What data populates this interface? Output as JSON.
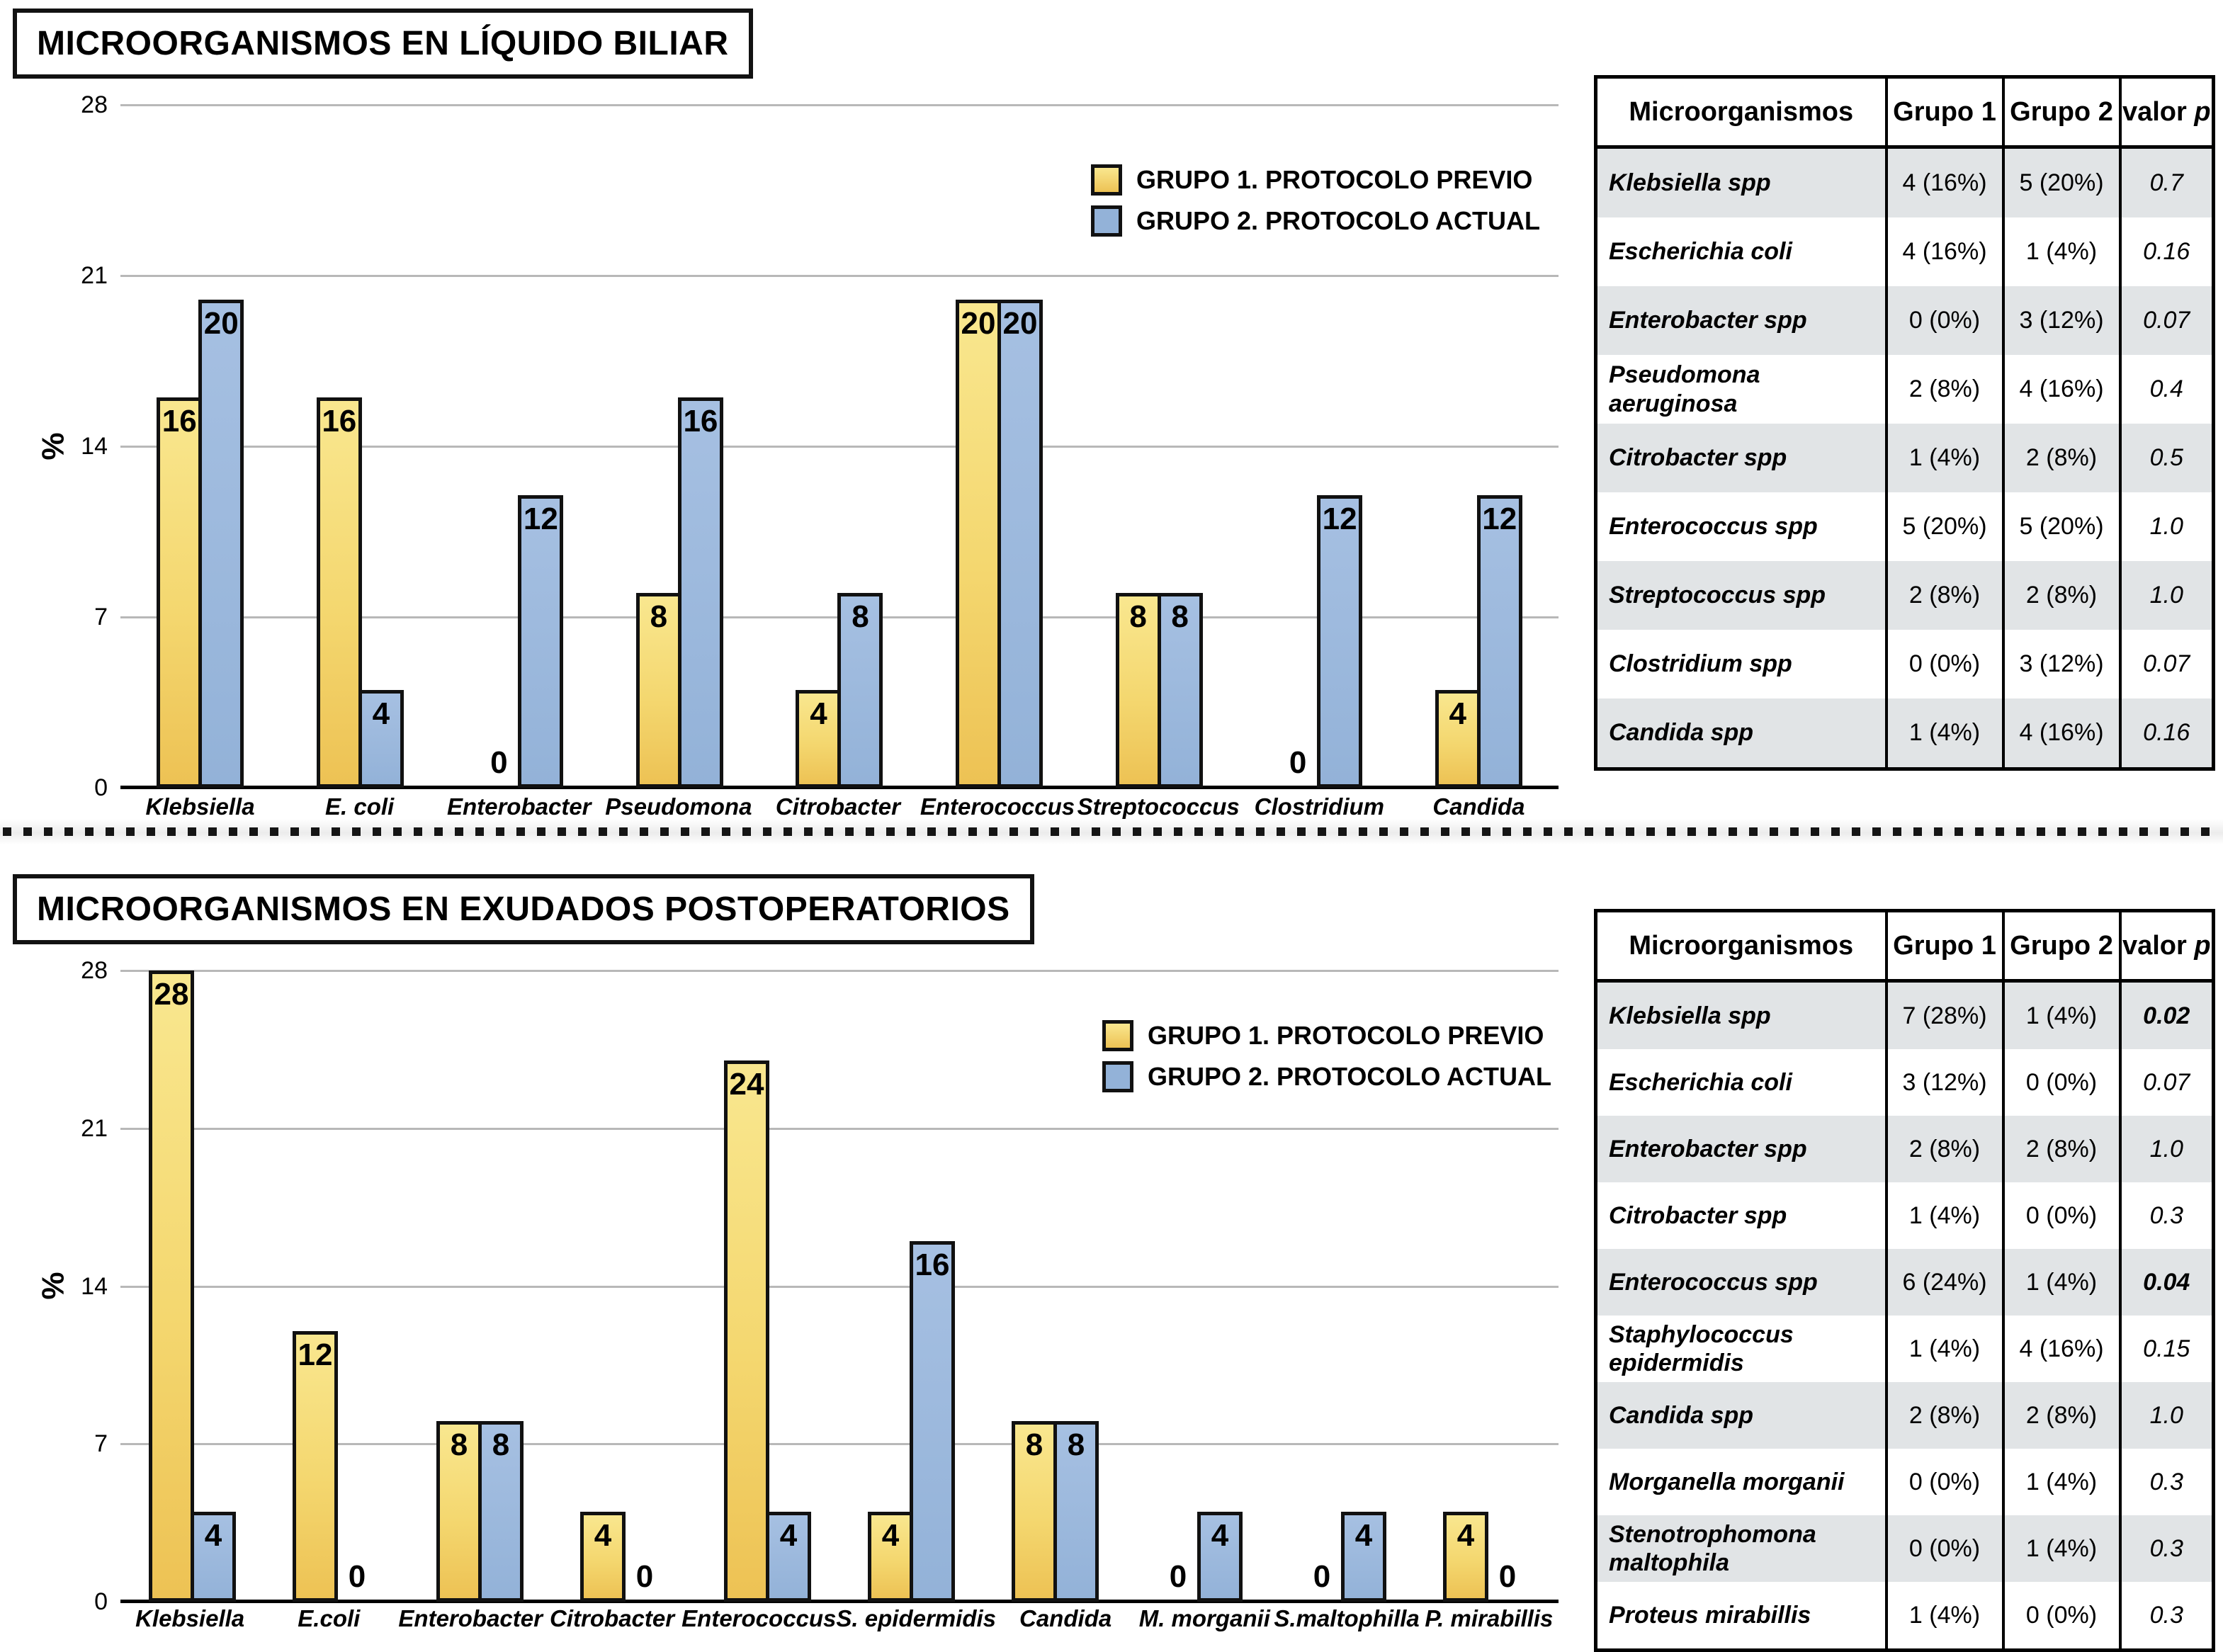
{
  "colors": {
    "yellow_top": "#f9e78f",
    "yellow_mid": "#f4d76f",
    "yellow_bottom": "#edc254",
    "blue_top": "#a6c0e2",
    "blue_bottom": "#93b2d8",
    "bar_border": "#111111",
    "gridline": "#b8b8b8",
    "axis": "#000000",
    "row_shade": "#e1e4e6"
  },
  "chart_data": [
    {
      "type": "bar",
      "title": "MICROORGANISMOS EN LÍQUIDO BILIAR",
      "xlabel": "",
      "ylabel": "%",
      "ylim": [
        0,
        28
      ],
      "yticks": [
        0,
        7,
        14,
        21,
        28
      ],
      "grid": true,
      "legend_position": "top-right",
      "categories": [
        "Klebsiella",
        "E. coli",
        "Enterobacter",
        "Pseudomona",
        "Citrobacter",
        "Enterococcus",
        "Streptococcus",
        "Clostridium",
        "Candida"
      ],
      "series": [
        {
          "name": "GRUPO 1. PROTOCOLO PREVIO",
          "color": "yellow",
          "values": [
            16,
            16,
            0,
            8,
            4,
            20,
            8,
            0,
            4
          ]
        },
        {
          "name": "GRUPO 2. PROTOCOLO ACTUAL",
          "color": "blue",
          "values": [
            20,
            4,
            12,
            16,
            8,
            20,
            8,
            12,
            12
          ]
        }
      ]
    },
    {
      "type": "bar",
      "title": "MICROORGANISMOS EN EXUDADOS POSTOPERATORIOS",
      "xlabel": "",
      "ylabel": "%",
      "ylim": [
        0,
        28
      ],
      "yticks": [
        0,
        7,
        14,
        21,
        28
      ],
      "grid": true,
      "legend_position": "top-right",
      "categories": [
        "Klebsiella",
        "E.coli",
        "Enterobacter",
        "Citrobacter",
        "Enterococcus",
        "S. epidermidis",
        "Candida",
        "M. morganii",
        "S.maltophilla",
        "P. mirabillis"
      ],
      "series": [
        {
          "name": "GRUPO 1. PROTOCOLO PREVIO",
          "color": "yellow",
          "values": [
            28,
            12,
            8,
            4,
            24,
            4,
            8,
            0,
            0,
            4
          ]
        },
        {
          "name": "GRUPO 2. PROTOCOLO ACTUAL",
          "color": "blue",
          "values": [
            4,
            0,
            8,
            0,
            4,
            16,
            8,
            4,
            4,
            0
          ]
        }
      ]
    }
  ],
  "sections": [
    {
      "title": "MICROORGANISMOS EN LÍQUIDO BILIAR",
      "legend": [
        {
          "label": "GRUPO 1. PROTOCOLO PREVIO",
          "swatch": "yellow"
        },
        {
          "label": "GRUPO 2. PROTOCOLO ACTUAL",
          "swatch": "blue"
        }
      ],
      "table": {
        "headers": [
          "Microorganismos",
          "Grupo 1",
          "Grupo 2",
          "valor p"
        ],
        "rows": [
          {
            "name": "Klebsiella spp",
            "grupo1": "4 (16%)",
            "grupo2": "5 (20%)",
            "p": "0.7",
            "p_bold": false
          },
          {
            "name": "Escherichia coli",
            "grupo1": "4 (16%)",
            "grupo2": "1 (4%)",
            "p": "0.16",
            "p_bold": false
          },
          {
            "name": "Enterobacter spp",
            "grupo1": "0 (0%)",
            "grupo2": "3 (12%)",
            "p": "0.07",
            "p_bold": false
          },
          {
            "name": "Pseudomona aeruginosa",
            "grupo1": "2 (8%)",
            "grupo2": "4 (16%)",
            "p": "0.4",
            "p_bold": false
          },
          {
            "name": "Citrobacter spp",
            "grupo1": "1 (4%)",
            "grupo2": "2 (8%)",
            "p": "0.5",
            "p_bold": false
          },
          {
            "name": "Enterococcus spp",
            "grupo1": "5 (20%)",
            "grupo2": "5 (20%)",
            "p": "1.0",
            "p_bold": false
          },
          {
            "name": "Streptococcus spp",
            "grupo1": "2 (8%)",
            "grupo2": "2 (8%)",
            "p": "1.0",
            "p_bold": false
          },
          {
            "name": "Clostridium spp",
            "grupo1": "0 (0%)",
            "grupo2": "3 (12%)",
            "p": "0.07",
            "p_bold": false
          },
          {
            "name": "Candida spp",
            "grupo1": "1 (4%)",
            "grupo2": "4 (16%)",
            "p": "0.16",
            "p_bold": false
          }
        ]
      }
    },
    {
      "title": "MICROORGANISMOS EN EXUDADOS POSTOPERATORIOS",
      "legend": [
        {
          "label": "GRUPO 1. PROTOCOLO PREVIO",
          "swatch": "yellow"
        },
        {
          "label": "GRUPO 2. PROTOCOLO ACTUAL",
          "swatch": "blue"
        }
      ],
      "table": {
        "headers": [
          "Microorganismos",
          "Grupo 1",
          "Grupo 2",
          "valor p"
        ],
        "rows": [
          {
            "name": "Klebsiella spp",
            "grupo1": "7 (28%)",
            "grupo2": "1 (4%)",
            "p": "0.02",
            "p_bold": true
          },
          {
            "name": "Escherichia coli",
            "grupo1": "3 (12%)",
            "grupo2": "0 (0%)",
            "p": "0.07",
            "p_bold": false
          },
          {
            "name": "Enterobacter spp",
            "grupo1": "2 (8%)",
            "grupo2": "2 (8%)",
            "p": "1.0",
            "p_bold": false
          },
          {
            "name": "Citrobacter spp",
            "grupo1": "1 (4%)",
            "grupo2": "0 (0%)",
            "p": "0.3",
            "p_bold": false
          },
          {
            "name": "Enterococcus spp",
            "grupo1": "6 (24%)",
            "grupo2": "1 (4%)",
            "p": "0.04",
            "p_bold": true
          },
          {
            "name": "Staphylococcus epidermidis",
            "grupo1": "1 (4%)",
            "grupo2": "4 (16%)",
            "p": "0.15",
            "p_bold": false
          },
          {
            "name": "Candida spp",
            "grupo1": "2 (8%)",
            "grupo2": "2 (8%)",
            "p": "1.0",
            "p_bold": false
          },
          {
            "name": "Morganella morganii",
            "grupo1": "0 (0%)",
            "grupo2": "1 (4%)",
            "p": "0.3",
            "p_bold": false
          },
          {
            "name": "Stenotrophomona maltophila",
            "grupo1": "0 (0%)",
            "grupo2": "1 (4%)",
            "p": "0.3",
            "p_bold": false
          },
          {
            "name": "Proteus mirabillis",
            "grupo1": "1 (4%)",
            "grupo2": "0 (0%)",
            "p": "0.3",
            "p_bold": false
          }
        ]
      }
    }
  ]
}
